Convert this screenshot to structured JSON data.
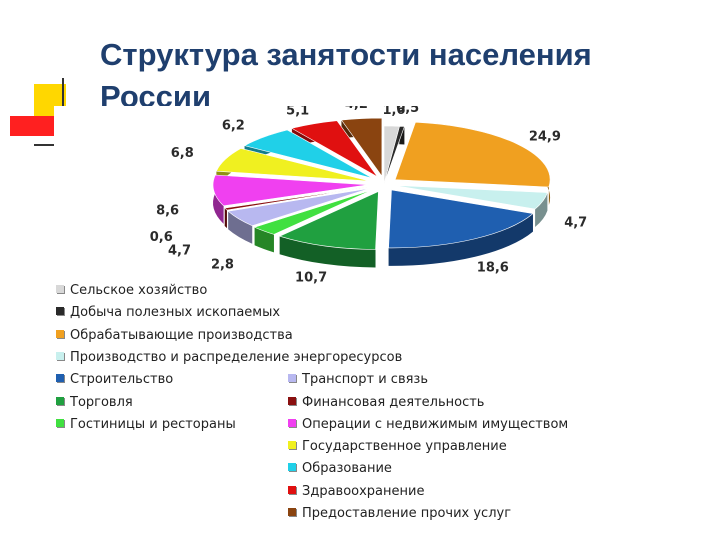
{
  "title": "Структура занятости населения России",
  "chart_data": {
    "type": "pie",
    "title": "Структура занятости населения России",
    "legend_placement": "bottom",
    "slices": [
      {
        "label": "Сельское хозяйство",
        "value": 1.6,
        "color": "#d8d8d8"
      },
      {
        "label": "Добыча полезных ископаемых",
        "value": 0.5,
        "color": "#2a2a2a"
      },
      {
        "label": "Обрабатывающие производства",
        "value": 24.9,
        "color": "#f0a020"
      },
      {
        "label": "Производство и распределение энергоресурсов",
        "value": 4.7,
        "color": "#c8f0ee"
      },
      {
        "label": "Строительство",
        "value": 18.6,
        "color": "#1f5fb0"
      },
      {
        "label": "Торговля",
        "value": 10.7,
        "color": "#20a040"
      },
      {
        "label": "Гостиницы и рестораны",
        "value": 2.8,
        "color": "#40e040"
      },
      {
        "label": "Транспорт и связь",
        "value": 4.7,
        "color": "#b8b8f0"
      },
      {
        "label": "Финансовая деятельность",
        "value": 0.6,
        "color": "#8a1010"
      },
      {
        "label": "Операции с недвижимым имуществом",
        "value": 8.6,
        "color": "#f040f0"
      },
      {
        "label": "Государственное управление",
        "value": 6.8,
        "color": "#f0f020"
      },
      {
        "label": "Образование",
        "value": 6.2,
        "color": "#20d0e8"
      },
      {
        "label": "Здравоохранение",
        "value": 5.1,
        "color": "#e01010"
      },
      {
        "label": "Предоставление прочих услуг",
        "value": 4.2,
        "color": "#8a4410"
      }
    ]
  }
}
